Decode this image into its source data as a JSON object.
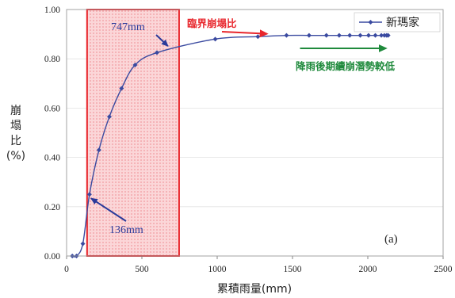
{
  "chart_data": {
    "type": "line",
    "xlabel": "累積雨量(mm)",
    "ylabel": [
      "崩",
      "塌",
      "比",
      "(%)"
    ],
    "xlim": [
      0,
      2500
    ],
    "ylim": [
      0,
      1.0
    ],
    "xticks": [
      0,
      500,
      1000,
      1500,
      2000,
      2500
    ],
    "yticks": [
      "0.00",
      "0.20",
      "0.40",
      "0.60",
      "0.80",
      "1.00"
    ],
    "grid": "horizontal",
    "legend": "top-right",
    "panel_label": "(a)",
    "series": [
      {
        "name": "新瑪家",
        "color": "#3a4aa0",
        "x": [
          38,
          66,
          108,
          152,
          215,
          284,
          365,
          455,
          600,
          987,
          1270,
          1460,
          1610,
          1725,
          1810,
          1880,
          1950,
          2005,
          2050,
          2090,
          2110,
          2125,
          2135
        ],
        "y": [
          0.0,
          0.0,
          0.05,
          0.25,
          0.43,
          0.565,
          0.68,
          0.775,
          0.825,
          0.88,
          0.89,
          0.895,
          0.895,
          0.895,
          0.895,
          0.895,
          0.895,
          0.895,
          0.895,
          0.895,
          0.895,
          0.895,
          0.895
        ]
      }
    ],
    "highlight_region": {
      "x_from": 136,
      "x_to": 747,
      "color": "#e8262c"
    },
    "annotations": [
      {
        "text": "747mm",
        "color": "#2a3a9a",
        "target_x": 747,
        "target_y": 0.845
      },
      {
        "text": "136mm",
        "color": "#2a3a9a",
        "target_x": 136,
        "target_y": 0.25
      },
      {
        "text": "臨界崩塌比",
        "color": "#e8262c",
        "target_x": 1330,
        "target_y": 0.895
      },
      {
        "text": "降雨後期續崩潛勢較低",
        "color": "#1f8a3c",
        "arrow_from_x": 1550,
        "arrow_to_x": 2120,
        "arrow_y": 0.81
      }
    ]
  }
}
